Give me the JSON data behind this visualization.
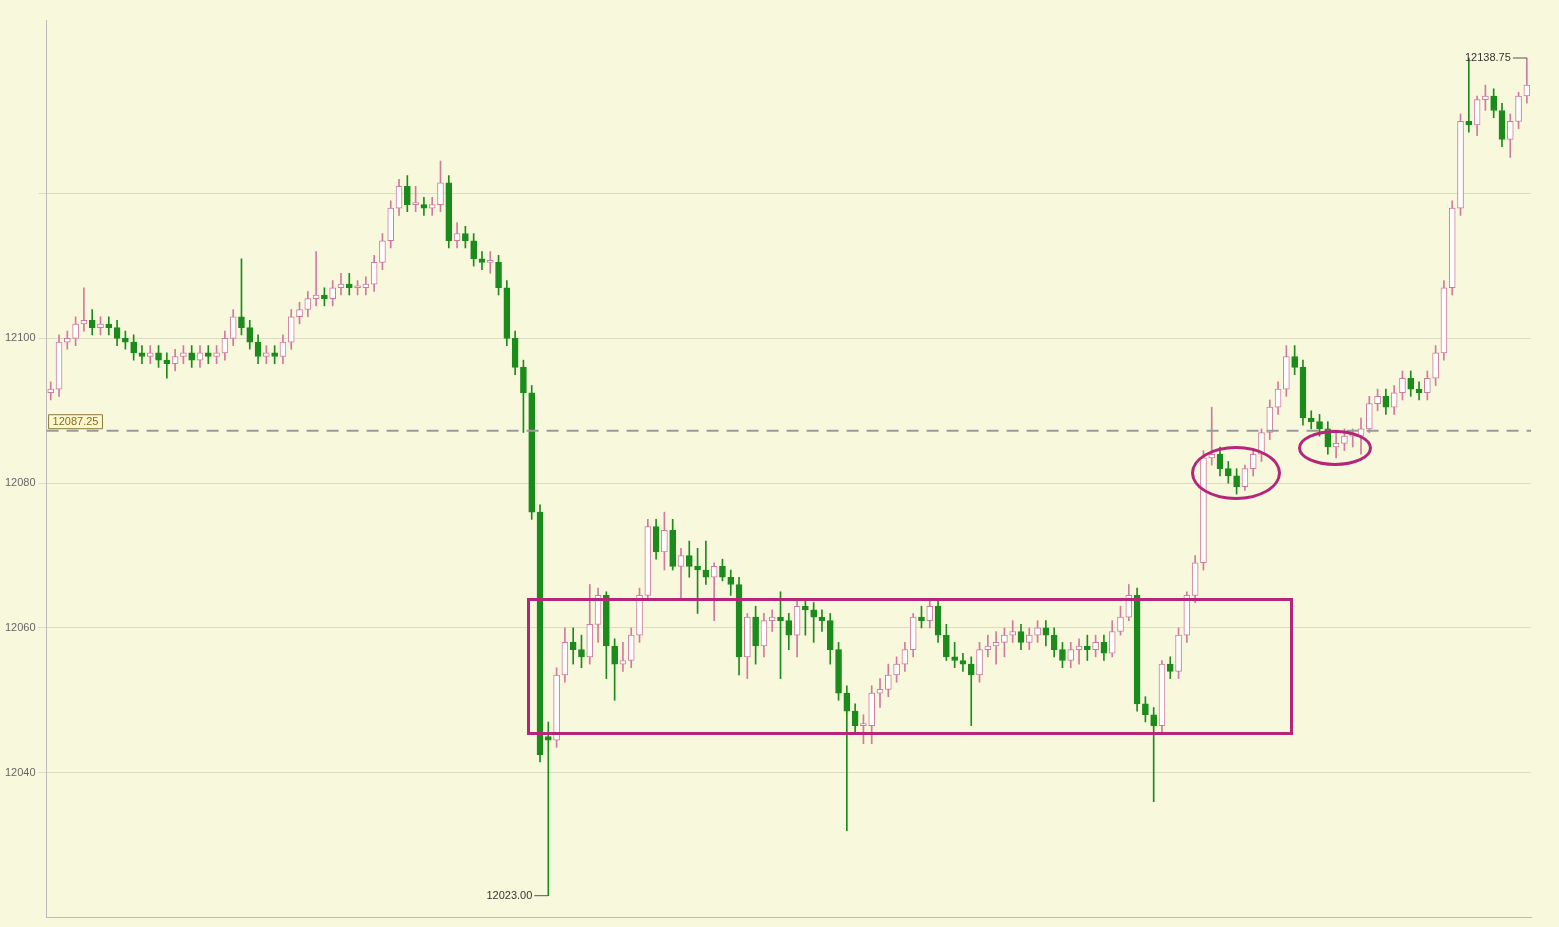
{
  "chart_data": {
    "type": "candlestick",
    "categories": [
      null,
      null,
      null,
      null,
      null,
      null,
      null,
      null,
      null,
      null,
      null,
      null,
      null,
      null,
      null,
      null,
      null,
      null,
      null,
      null,
      null,
      null,
      null,
      null,
      null,
      null,
      null,
      null,
      null,
      null,
      null,
      null,
      null,
      null,
      null,
      null,
      null,
      null,
      null,
      null,
      null,
      null,
      null,
      null,
      null,
      null,
      null,
      null,
      null,
      null,
      null,
      null,
      null,
      null,
      null,
      null,
      null,
      null,
      null,
      null,
      null,
      null,
      null,
      null,
      null,
      null,
      null,
      null,
      null,
      null,
      null,
      null,
      null,
      null,
      null,
      null,
      null,
      null,
      null,
      null,
      null,
      null,
      null,
      null,
      null,
      null,
      null,
      null,
      null,
      null,
      null,
      null,
      null,
      null,
      null,
      null,
      null,
      null,
      null,
      null,
      null,
      null,
      null,
      null,
      null,
      null,
      null,
      null,
      null,
      null,
      null,
      null,
      null,
      null,
      null,
      null,
      null,
      null,
      null,
      null,
      null,
      null,
      null,
      null,
      null,
      null,
      null,
      null,
      null,
      null,
      null,
      null,
      null,
      null,
      null,
      null,
      null,
      null,
      null,
      null,
      null,
      null,
      null,
      null,
      null,
      null,
      null,
      null,
      null,
      null,
      null,
      null,
      null,
      null,
      null,
      null,
      null,
      null,
      null,
      null,
      null,
      null,
      null,
      null,
      null,
      null,
      null,
      null,
      null,
      null,
      null,
      null,
      null,
      null,
      null,
      null,
      null,
      null,
      null
    ],
    "ohlc": [
      [
        12092.5,
        12094,
        12091.5,
        12093
      ],
      [
        12093,
        12100.5,
        12092,
        12099.5
      ],
      [
        12099.5,
        12101,
        12098.5,
        12100
      ],
      [
        12100,
        12103,
        12099,
        12102
      ],
      [
        12102,
        12107,
        12101,
        12102.5
      ],
      [
        12102.5,
        12104,
        12100.5,
        12101.5
      ],
      [
        12101.5,
        12103,
        12100.5,
        12102
      ],
      [
        12102,
        12103,
        12100.5,
        12101.5
      ],
      [
        12101.5,
        12102.5,
        12099,
        12100
      ],
      [
        12100,
        12101,
        12098.5,
        12099.5
      ],
      [
        12099.5,
        12100.5,
        12097,
        12098
      ],
      [
        12098,
        12099,
        12096.5,
        12097.5
      ],
      [
        12097.5,
        12099,
        12096.5,
        12098
      ],
      [
        12098,
        12099,
        12096,
        12097
      ],
      [
        12097,
        12098,
        12094.5,
        12096.5
      ],
      [
        12096.5,
        12098.5,
        12095.5,
        12097.5
      ],
      [
        12097.5,
        12099,
        12096.5,
        12098
      ],
      [
        12098,
        12099,
        12096,
        12097
      ],
      [
        12097,
        12099,
        12096,
        12098
      ],
      [
        12098,
        12099,
        12096.5,
        12097.5
      ],
      [
        12097.5,
        12099,
        12096.5,
        12098
      ],
      [
        12098,
        12101,
        12097,
        12100
      ],
      [
        12100,
        12104,
        12099,
        12103
      ],
      [
        12103,
        12111,
        12100.5,
        12101.5
      ],
      [
        12101.5,
        12102.5,
        12098.5,
        12099.5
      ],
      [
        12099.5,
        12100.5,
        12096.5,
        12097.5
      ],
      [
        12097.5,
        12099,
        12096.5,
        12098
      ],
      [
        12098,
        12099,
        12096.5,
        12097.5
      ],
      [
        12097.5,
        12100.5,
        12096.5,
        12099.5
      ],
      [
        12099.5,
        12104,
        12098.5,
        12103
      ],
      [
        12103,
        12105,
        12102,
        12104
      ],
      [
        12104,
        12106.5,
        12103,
        12105.5
      ],
      [
        12105.5,
        12112,
        12104.5,
        12106
      ],
      [
        12106,
        12107,
        12104.5,
        12105.5
      ],
      [
        12105.5,
        12108,
        12104.5,
        12107
      ],
      [
        12107,
        12109,
        12106,
        12107.5
      ],
      [
        12107.5,
        12109,
        12106,
        12107
      ],
      [
        12107,
        12108,
        12106,
        12107
      ],
      [
        12107,
        12108.5,
        12106,
        12107.5
      ],
      [
        12107.5,
        12111.5,
        12106.5,
        12110.5
      ],
      [
        12110.5,
        12114.5,
        12109.5,
        12113.5
      ],
      [
        12113.5,
        12119,
        12112.5,
        12118
      ],
      [
        12118,
        12122,
        12117,
        12121
      ],
      [
        12121,
        12122.5,
        12117.5,
        12118.5
      ],
      [
        12118.5,
        12121,
        12117.5,
        12118.5
      ],
      [
        12118.5,
        12119.5,
        12117,
        12118
      ],
      [
        12118,
        12119.5,
        12117,
        12118.5
      ],
      [
        12118.5,
        12124.5,
        12117.5,
        12121.5
      ],
      [
        12121.5,
        12122.5,
        12112.5,
        12113.5
      ],
      [
        12113.5,
        12116,
        12112.5,
        12114.5
      ],
      [
        12114.5,
        12115.5,
        12112.5,
        12113.5
      ],
      [
        12113.5,
        12114.5,
        12110,
        12111
      ],
      [
        12111,
        12112,
        12109.5,
        12110.5
      ],
      [
        12110.5,
        12112,
        12109,
        12110.5
      ],
      [
        12110.5,
        12111.5,
        12106,
        12107
      ],
      [
        12107,
        12108,
        12099,
        12100
      ],
      [
        12100,
        12101,
        12095,
        12096
      ],
      [
        12096,
        12097,
        12087,
        12092.5
      ],
      [
        12092.5,
        12093.5,
        12075,
        12076
      ],
      [
        12076,
        12077,
        12041.5,
        12042.5
      ],
      [
        12045,
        12047,
        12023,
        12044.5
      ],
      [
        12044.5,
        12054.5,
        12043.5,
        12053.5
      ],
      [
        12053.5,
        12060,
        12052.5,
        12058
      ],
      [
        12058,
        12060,
        12055,
        12057
      ],
      [
        12057,
        12059,
        12054.5,
        12056
      ],
      [
        12056,
        12066,
        12055,
        12060.5
      ],
      [
        12060.5,
        12065.5,
        12058,
        12064.5
      ],
      [
        12064.5,
        12065,
        12053,
        12057.5
      ],
      [
        12057.5,
        12058.5,
        12050,
        12055
      ],
      [
        12055,
        12058,
        12054,
        12055.5
      ],
      [
        12055.5,
        12060,
        12054.5,
        12059
      ],
      [
        12059,
        12065.5,
        12058,
        12064.5
      ],
      [
        12064.5,
        12075,
        12064,
        12074
      ],
      [
        12074,
        12075,
        12069.5,
        12070.5
      ],
      [
        12070.5,
        12076,
        12068,
        12073.5
      ],
      [
        12073.5,
        12075,
        12068,
        12068.5
      ],
      [
        12068.5,
        12071,
        12064,
        12070
      ],
      [
        12070,
        12072,
        12067,
        12068.5
      ],
      [
        12068.5,
        12071,
        12062,
        12068
      ],
      [
        12068,
        12072,
        12066,
        12067
      ],
      [
        12067,
        12069,
        12061,
        12068.5
      ],
      [
        12068.5,
        12069.5,
        12066.5,
        12067
      ],
      [
        12067,
        12068,
        12064.5,
        12066
      ],
      [
        12066,
        12067,
        12053.5,
        12056
      ],
      [
        12056,
        12062,
        12053,
        12061.5
      ],
      [
        12061.5,
        12063,
        12055,
        12057.5
      ],
      [
        12057.5,
        12062,
        12056,
        12061
      ],
      [
        12061,
        12062.5,
        12059.5,
        12061.5
      ],
      [
        12061.5,
        12065,
        12053,
        12061
      ],
      [
        12061,
        12062,
        12057,
        12059
      ],
      [
        12059,
        12064,
        12056,
        12063
      ],
      [
        12063,
        12064,
        12059,
        12062.5
      ],
      [
        12062.5,
        12063.5,
        12058,
        12061.5
      ],
      [
        12061.5,
        12062.5,
        12059.5,
        12061
      ],
      [
        12061,
        12062,
        12055,
        12057
      ],
      [
        12057,
        12058,
        12050,
        12051
      ],
      [
        12051,
        12052,
        12032,
        12048.5
      ],
      [
        12048.5,
        12049.5,
        12045.5,
        12046.5
      ],
      [
        12046.5,
        12048,
        12044,
        12046.5
      ],
      [
        12046.5,
        12052,
        12044,
        12051
      ],
      [
        12051,
        12053,
        12049,
        12051.5
      ],
      [
        12051.5,
        12055,
        12050.5,
        12053.5
      ],
      [
        12053.5,
        12056,
        12052.5,
        12055
      ],
      [
        12055,
        12058,
        12054,
        12057
      ],
      [
        12057,
        12062,
        12056,
        12061.5
      ],
      [
        12061.5,
        12063,
        12060,
        12061
      ],
      [
        12061,
        12064,
        12060,
        12063
      ],
      [
        12063,
        12064,
        12058,
        12059
      ],
      [
        12059,
        12060.5,
        12055.5,
        12056
      ],
      [
        12056,
        12058,
        12054.5,
        12055.5
      ],
      [
        12055.5,
        12056.5,
        12054,
        12055
      ],
      [
        12055,
        12056,
        12046.5,
        12053.5
      ],
      [
        12053.5,
        12058,
        12052.5,
        12057
      ],
      [
        12057,
        12059,
        12056,
        12057.5
      ],
      [
        12057.5,
        12059.5,
        12055,
        12058
      ],
      [
        12058,
        12060,
        12056,
        12059
      ],
      [
        12059,
        12061,
        12058,
        12059.5
      ],
      [
        12059.5,
        12060.5,
        12057,
        12058
      ],
      [
        12058,
        12060,
        12057,
        12059
      ],
      [
        12059,
        12061,
        12058,
        12060
      ],
      [
        12060,
        12061,
        12057.5,
        12059
      ],
      [
        12059,
        12060,
        12056,
        12057
      ],
      [
        12057,
        12058,
        12054.5,
        12055.5
      ],
      [
        12055.5,
        12058,
        12054.5,
        12057
      ],
      [
        12057,
        12058.5,
        12055,
        12057.5
      ],
      [
        12057.5,
        12059,
        12055.5,
        12057
      ],
      [
        12057,
        12059,
        12056,
        12058
      ],
      [
        12058,
        12059,
        12055.5,
        12056.5
      ],
      [
        12056.5,
        12061,
        12056,
        12059.5
      ],
      [
        12059.5,
        12063,
        12059,
        12061.5
      ],
      [
        12061.5,
        12066,
        12061,
        12064.5
      ],
      [
        12064.5,
        12065.5,
        12048.5,
        12049.5
      ],
      [
        12049.5,
        12050.5,
        12047,
        12048
      ],
      [
        12048,
        12049,
        12036,
        12046.5
      ],
      [
        12046.5,
        12055.5,
        12045.5,
        12055
      ],
      [
        12055,
        12056,
        12053,
        12054
      ],
      [
        12054,
        12060,
        12053,
        12059
      ],
      [
        12059,
        12065,
        12058,
        12064.5
      ],
      [
        12064.5,
        12070,
        12063.5,
        12069
      ],
      [
        12069,
        12084.5,
        12068,
        12083.5
      ],
      [
        12083.5,
        12090.5,
        12082.5,
        12084
      ],
      [
        12084,
        12085,
        12081,
        12082
      ],
      [
        12082,
        12083,
        12080,
        12081
      ],
      [
        12081,
        12082,
        12078.5,
        12079.5
      ],
      [
        12079.5,
        12082.5,
        12079,
        12082
      ],
      [
        12082,
        12084.5,
        12081,
        12084
      ],
      [
        12084,
        12087.5,
        12083,
        12087
      ],
      [
        12087,
        12091.5,
        12086,
        12090.5
      ],
      [
        12090.5,
        12094,
        12089.5,
        12093
      ],
      [
        12093,
        12099,
        12092,
        12097.5
      ],
      [
        12097.5,
        12099,
        12095,
        12096
      ],
      [
        12096,
        12097,
        12088,
        12089
      ],
      [
        12089,
        12090,
        12087.5,
        12088.5
      ],
      [
        12088.5,
        12089.5,
        12086.5,
        12087.5
      ],
      [
        12087.5,
        12088.5,
        12084,
        12085
      ],
      [
        12085,
        12087,
        12083.5,
        12085.5
      ],
      [
        12085.5,
        12087.5,
        12084.5,
        12086.5
      ],
      [
        12086.5,
        12087.5,
        12085,
        12086.5
      ],
      [
        12086.5,
        12089,
        12084,
        12087.5
      ],
      [
        12087.5,
        12092,
        12087,
        12091
      ],
      [
        12091,
        12093,
        12090,
        12092
      ],
      [
        12092,
        12093,
        12089.5,
        12090.5
      ],
      [
        12090.5,
        12093.5,
        12089.5,
        12092.5
      ],
      [
        12092.5,
        12095.5,
        12091.5,
        12094.5
      ],
      [
        12094.5,
        12095.5,
        12092,
        12093
      ],
      [
        12093,
        12094,
        12091.5,
        12092.5
      ],
      [
        12092.5,
        12095.5,
        12091.5,
        12094.5
      ],
      [
        12094.5,
        12099,
        12093.5,
        12098
      ],
      [
        12098,
        12108,
        12097,
        12107
      ],
      [
        12107,
        12119,
        12106,
        12118
      ],
      [
        12118,
        12131,
        12117,
        12130
      ],
      [
        12130,
        12138.75,
        12128.5,
        12129.5
      ],
      [
        12129.5,
        12133.5,
        12128,
        12133
      ],
      [
        12133,
        12135,
        12131.5,
        12133.5
      ],
      [
        12133.5,
        12134.5,
        12130.5,
        12131.5
      ],
      [
        12131.5,
        12132.5,
        12126.5,
        12127.5
      ],
      [
        12127.5,
        12131,
        12125,
        12130
      ],
      [
        12130,
        12134,
        12129,
        12133.5
      ],
      [
        12133.5,
        12138.75,
        12132.5,
        12135
      ]
    ],
    "ylim": [
      12020,
      12144
    ],
    "yticks": [
      12040,
      12060,
      12080,
      12100,
      {
        "value": 12120,
        "label": null
      }
    ],
    "grid": "y",
    "ref_lines": [
      {
        "axis": "y",
        "value": 12087.25,
        "label": "12087.25",
        "color": "#9a9a9a",
        "line_style": "dashed"
      }
    ],
    "annotations": [
      "12138.75",
      "12023.00"
    ]
  }
}
